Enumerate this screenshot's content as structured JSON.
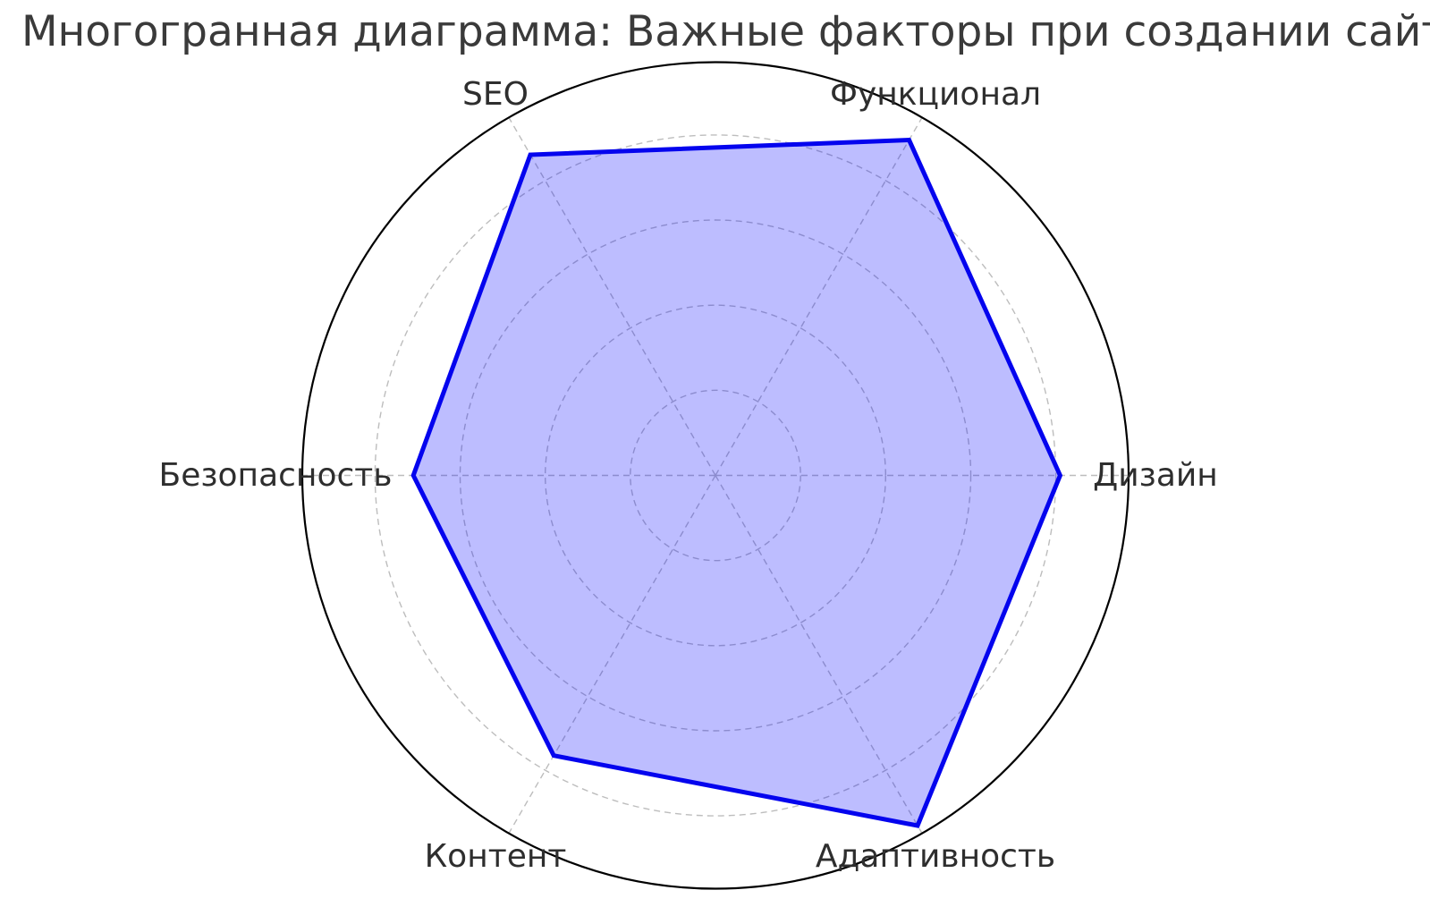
{
  "title": "Многогранная диаграмма: Важные факторы при создании сайтов",
  "chart_data": {
    "type": "radar",
    "title": "Многогранная диаграмма: Важные факторы при создании сайтов",
    "categories": [
      "Дизайн",
      "Функционал",
      "SEO",
      "Безопасность",
      "Контент",
      "Адаптивность"
    ],
    "values": [
      8.1,
      9.1,
      8.7,
      7.1,
      7.6,
      9.5
    ],
    "angles_deg": [
      0,
      60,
      120,
      180,
      240,
      300
    ],
    "r_axis": {
      "min": 0,
      "max": 9.71,
      "ticks": [
        2,
        4,
        6,
        8
      ],
      "tick_labels_shown": false
    },
    "grid": {
      "shown": true,
      "style": "dashed"
    },
    "legend": {
      "shown": false
    },
    "colors": {
      "series_line": "#0404ee",
      "series_fill": "rgba(0,0,255,0.26)",
      "grid_line": "#bdbdbd",
      "outer_ring": "#000000",
      "label_text": "#2e2e2e",
      "title_text": "#3a3a3a",
      "background": "#ffffff"
    }
  }
}
